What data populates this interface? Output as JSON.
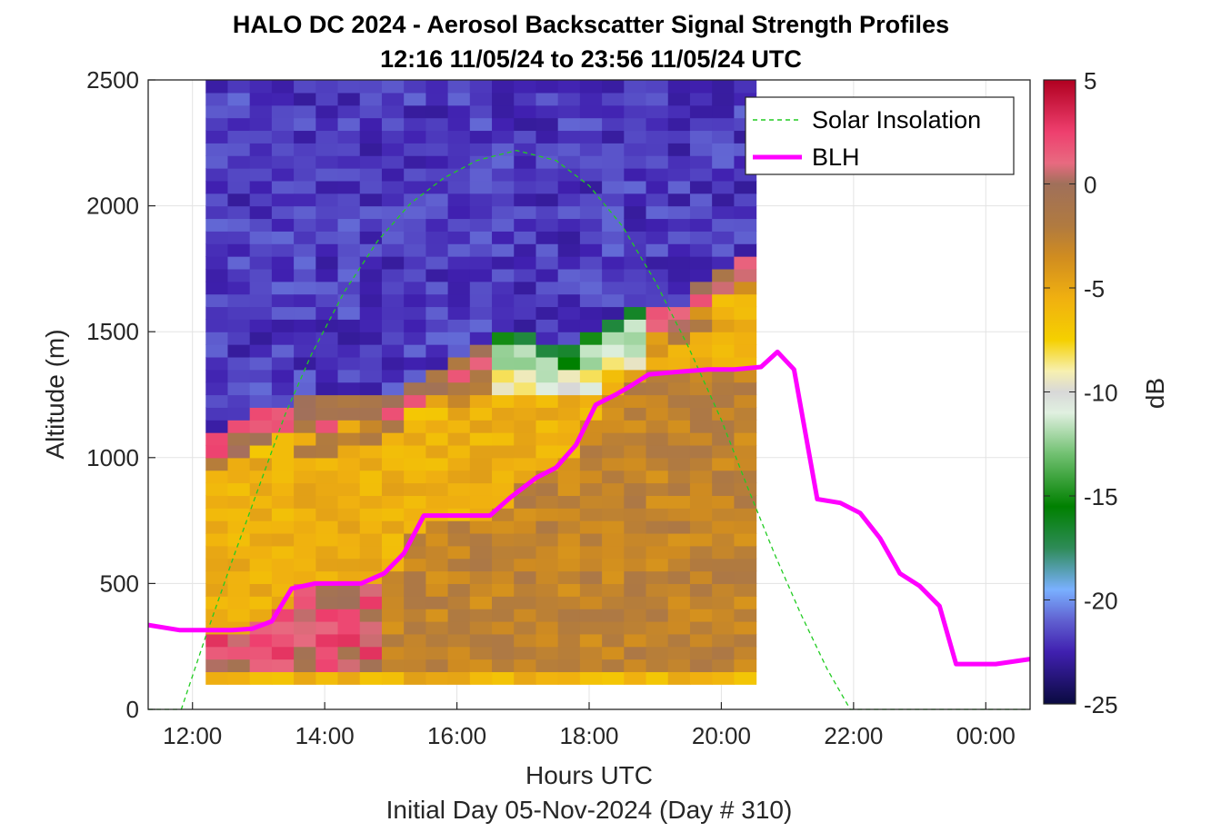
{
  "chart_data": {
    "type": "heatmap",
    "title": "HALO DC 2024 - Aerosol Backscatter Signal Strength Profiles",
    "subtitle": "12:16 11/05/24 to 23:56 11/05/24  UTC",
    "xlabel": "Hours UTC",
    "x_sublabel": "Initial Day 05-Nov-2024 (Day # 310)",
    "ylabel": "Altitude (m)",
    "colorbar_label": "dB",
    "xlim": [
      11.33,
      24.67
    ],
    "ylim": [
      0,
      2500
    ],
    "x_ticks": [
      {
        "hour": 12,
        "label": "12:00"
      },
      {
        "hour": 14,
        "label": "14:00"
      },
      {
        "hour": 16,
        "label": "16:00"
      },
      {
        "hour": 18,
        "label": "18:00"
      },
      {
        "hour": 20,
        "label": "20:00"
      },
      {
        "hour": 22,
        "label": "22:00"
      },
      {
        "hour": 24,
        "label": "00:00"
      }
    ],
    "y_ticks": [
      0,
      500,
      1000,
      1500,
      2000,
      2500
    ],
    "colorbar": {
      "range": [
        -25,
        5
      ],
      "ticks": [
        5,
        0,
        -5,
        -10,
        -15,
        -20,
        -25
      ],
      "stops": [
        {
          "v": 5,
          "color": "#b00020"
        },
        {
          "v": 2.5,
          "color": "#ee3f6e"
        },
        {
          "v": 1,
          "color": "#e86a80"
        },
        {
          "v": 0,
          "color": "#a0705a"
        },
        {
          "v": -2,
          "color": "#b07a40"
        },
        {
          "v": -3.5,
          "color": "#d08c20"
        },
        {
          "v": -5.5,
          "color": "#f0b010"
        },
        {
          "v": -7.5,
          "color": "#f5d000"
        },
        {
          "v": -9,
          "color": "#f7f0b0"
        },
        {
          "v": -10,
          "color": "#d8d8d8"
        },
        {
          "v": -11,
          "color": "#e0f0e0"
        },
        {
          "v": -13,
          "color": "#70c070"
        },
        {
          "v": -15.5,
          "color": "#008000"
        },
        {
          "v": -17.5,
          "color": "#2e8b57"
        },
        {
          "v": -19.5,
          "color": "#7ab0ff"
        },
        {
          "v": -21,
          "color": "#6060d0"
        },
        {
          "v": -22.5,
          "color": "#4020b0"
        },
        {
          "v": -25,
          "color": "#0a0a40"
        }
      ]
    },
    "heatmap": {
      "x_start_hour": 12.2,
      "x_step_hours": 0.333,
      "columns": 25,
      "y_start_m": 100,
      "y_step_m": 50,
      "rows": 48,
      "aerosol_top_m": [
        1050,
        1080,
        1120,
        1160,
        1170,
        1180,
        1190,
        1200,
        1210,
        1250,
        1290,
        1340,
        1390,
        1420,
        1420,
        1410,
        1400,
        1420,
        1510,
        1520,
        1540,
        1560,
        1640,
        1700,
        1750
      ]
    },
    "series": [
      {
        "name": "Solar Insolation",
        "style": "dashed",
        "color": "#22cc22",
        "x": [
          11.33,
          11.83,
          12.2,
          12.6,
          13.0,
          13.4,
          13.8,
          14.3,
          14.8,
          15.3,
          15.8,
          16.3,
          16.9,
          17.5,
          18.0,
          18.5,
          19.0,
          19.5,
          20.0,
          20.4,
          20.8,
          21.2,
          21.6,
          21.95,
          22.3,
          22.8,
          23.5,
          24.67
        ],
        "y": [
          0,
          0,
          290,
          590,
          880,
          1170,
          1410,
          1660,
          1860,
          2010,
          2110,
          2180,
          2220,
          2180,
          2080,
          1920,
          1700,
          1440,
          1150,
          880,
          620,
          380,
          160,
          0,
          0,
          0,
          0,
          0
        ]
      },
      {
        "name": "BLH",
        "style": "solid",
        "color": "#ff00ff",
        "x": [
          11.33,
          11.8,
          12.2,
          12.6,
          12.9,
          13.2,
          13.5,
          13.85,
          14.2,
          14.55,
          14.9,
          15.2,
          15.5,
          15.9,
          16.5,
          16.8,
          17.2,
          17.5,
          17.8,
          18.1,
          18.4,
          18.6,
          18.9,
          19.3,
          19.8,
          20.2,
          20.6,
          20.85,
          21.1,
          21.45,
          21.8,
          22.1,
          22.4,
          22.7,
          23.0,
          23.3,
          23.55,
          23.8,
          24.15,
          24.67
        ],
        "y": [
          335,
          315,
          315,
          315,
          320,
          350,
          480,
          500,
          500,
          500,
          540,
          620,
          770,
          770,
          770,
          840,
          920,
          960,
          1050,
          1210,
          1250,
          1280,
          1330,
          1340,
          1350,
          1350,
          1360,
          1420,
          1350,
          835,
          820,
          780,
          680,
          540,
          490,
          410,
          180,
          180,
          180,
          200
        ]
      }
    ],
    "legend": {
      "placement": "top-right"
    }
  }
}
